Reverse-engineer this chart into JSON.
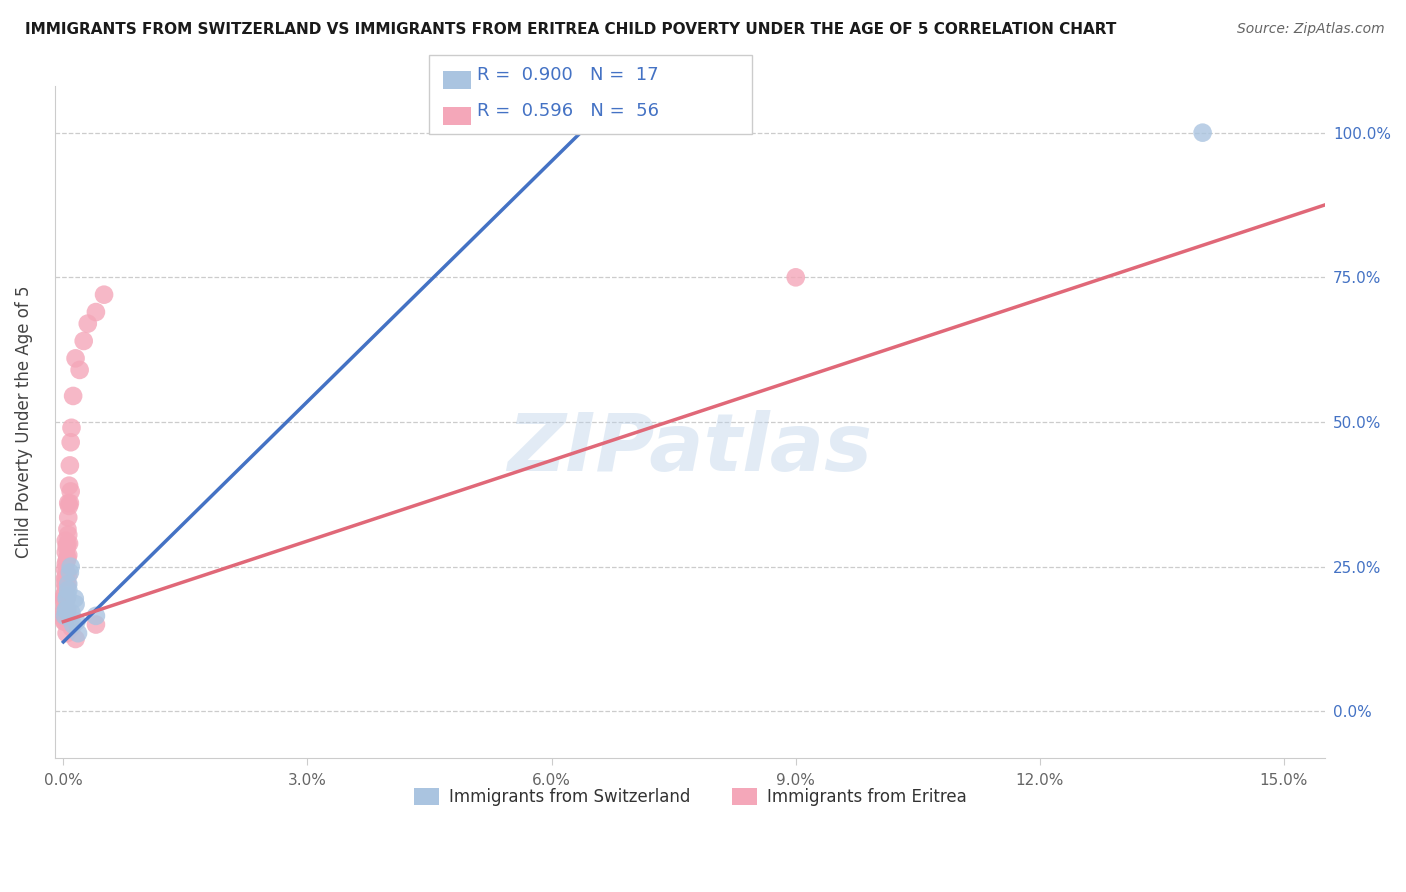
{
  "title": "IMMIGRANTS FROM SWITZERLAND VS IMMIGRANTS FROM ERITREA CHILD POVERTY UNDER THE AGE OF 5 CORRELATION CHART",
  "source": "Source: ZipAtlas.com",
  "ylabel": "Child Poverty Under the Age of 5",
  "watermark": "ZIPatlas",
  "xlim": [
    -0.001,
    0.155
  ],
  "ylim": [
    -0.08,
    1.08
  ],
  "xticks": [
    0.0,
    0.03,
    0.06,
    0.09,
    0.12,
    0.15
  ],
  "xticklabels": [
    "0.0%",
    "3.0%",
    "6.0%",
    "9.0%",
    "12.0%",
    "15.0%"
  ],
  "yticks": [
    0.0,
    0.25,
    0.5,
    0.75,
    1.0
  ],
  "yticklabels": [
    "0.0%",
    "25.0%",
    "50.0%",
    "75.0%",
    "100.0%"
  ],
  "background_color": "#ffffff",
  "switzerland_color": "#aac4e0",
  "eritrea_color": "#f4a7b9",
  "switzerland_line_color": "#4472c4",
  "eritrea_line_color": "#e06878",
  "legend_r_switzerland": "0.900",
  "legend_n_switzerland": "17",
  "legend_r_eritrea": "0.596",
  "legend_n_eritrea": "56",
  "legend_text_color": "#4472c4",
  "switzerland_scatter_x": [
    0.0002,
    0.0003,
    0.0004,
    0.0004,
    0.0005,
    0.0006,
    0.0006,
    0.0008,
    0.0009,
    0.001,
    0.0012,
    0.0014,
    0.0015,
    0.0016,
    0.0018,
    0.004,
    0.14
  ],
  "switzerland_scatter_y": [
    0.165,
    0.175,
    0.195,
    0.175,
    0.2,
    0.21,
    0.22,
    0.24,
    0.25,
    0.17,
    0.15,
    0.195,
    0.185,
    0.155,
    0.135,
    0.165,
    1.0
  ],
  "eritrea_scatter_x": [
    0.0001,
    0.0001,
    0.0001,
    0.0001,
    0.0001,
    0.0001,
    0.0002,
    0.0002,
    0.0002,
    0.0002,
    0.0002,
    0.0002,
    0.0002,
    0.0003,
    0.0003,
    0.0003,
    0.0003,
    0.0003,
    0.0003,
    0.0003,
    0.0004,
    0.0004,
    0.0004,
    0.0004,
    0.0004,
    0.0004,
    0.0004,
    0.0005,
    0.0005,
    0.0005,
    0.0005,
    0.0005,
    0.0006,
    0.0006,
    0.0006,
    0.0006,
    0.0006,
    0.0007,
    0.0007,
    0.0007,
    0.0008,
    0.0008,
    0.0009,
    0.0009,
    0.001,
    0.0012,
    0.0015,
    0.002,
    0.0025,
    0.003,
    0.004,
    0.005,
    0.001,
    0.0015,
    0.09,
    0.004
  ],
  "eritrea_scatter_y": [
    0.2,
    0.195,
    0.19,
    0.175,
    0.165,
    0.155,
    0.245,
    0.23,
    0.22,
    0.205,
    0.195,
    0.18,
    0.155,
    0.295,
    0.275,
    0.255,
    0.23,
    0.215,
    0.195,
    0.16,
    0.285,
    0.26,
    0.24,
    0.215,
    0.195,
    0.17,
    0.135,
    0.315,
    0.29,
    0.265,
    0.22,
    0.175,
    0.36,
    0.335,
    0.305,
    0.27,
    0.235,
    0.39,
    0.355,
    0.29,
    0.425,
    0.36,
    0.465,
    0.38,
    0.49,
    0.545,
    0.61,
    0.59,
    0.64,
    0.67,
    0.69,
    0.72,
    0.145,
    0.125,
    0.75,
    0.15
  ],
  "switzerland_line_x": [
    0.0,
    0.065
  ],
  "switzerland_line_y": [
    0.12,
    1.02
  ],
  "eritrea_line_x": [
    0.0,
    0.155
  ],
  "eritrea_line_y": [
    0.155,
    0.875
  ]
}
